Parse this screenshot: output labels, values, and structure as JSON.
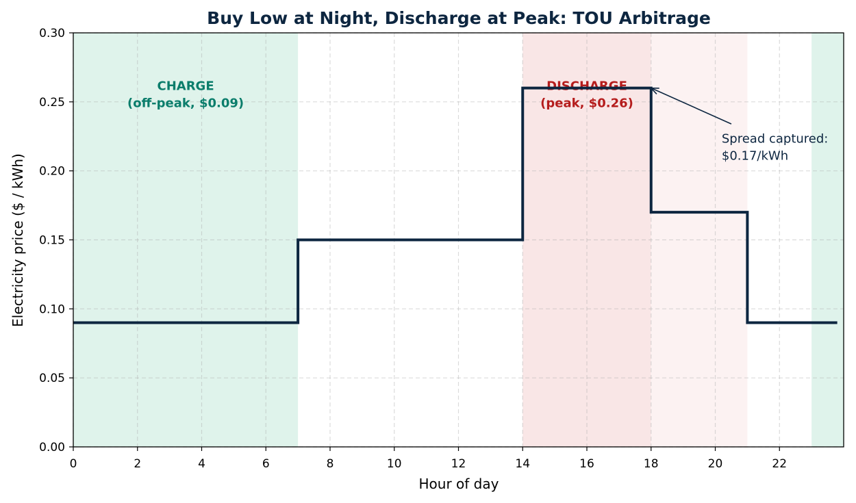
{
  "chart_data": {
    "type": "line",
    "step": "post",
    "title": "Buy Low at Night, Discharge at Peak: TOU Arbitrage",
    "xlabel": "Hour of day",
    "ylabel": "Electricity price ($ / kWh)",
    "xlim": [
      0,
      24
    ],
    "ylim": [
      0,
      0.3
    ],
    "xticks": [
      0,
      2,
      4,
      6,
      8,
      10,
      12,
      14,
      16,
      18,
      20,
      22
    ],
    "xtick_labels": [
      "0",
      "2",
      "4",
      "6",
      "8",
      "10",
      "12",
      "14",
      "16",
      "18",
      "20",
      "22"
    ],
    "yticks": [
      0,
      0.05,
      0.1,
      0.15,
      0.2,
      0.25,
      0.3
    ],
    "ytick_labels": [
      "0.00",
      "0.05",
      "0.10",
      "0.15",
      "0.20",
      "0.25",
      "0.30"
    ],
    "grid": true,
    "line_color": "#0d2640",
    "series": [
      {
        "x": [
          0,
          7,
          14,
          18,
          21,
          23.8
        ],
        "y": [
          0.09,
          0.15,
          0.26,
          0.17,
          0.09,
          0.09
        ]
      }
    ],
    "shaded_regions": [
      {
        "x0": 0,
        "x1": 7,
        "color": "#dff3eb",
        "kind": "charge"
      },
      {
        "x0": 23,
        "x1": 24,
        "color": "#dff3eb",
        "kind": "charge"
      },
      {
        "x0": 14,
        "x1": 18,
        "color": "#f9e6e6",
        "kind": "discharge"
      },
      {
        "x0": 18,
        "x1": 21,
        "color": "#fcf2f2",
        "kind": "discharge-light"
      }
    ],
    "zone_labels": [
      {
        "lines": [
          "CHARGE",
          "(off-peak, $0.09)"
        ],
        "x": 3.5,
        "y": 0.258,
        "color": "#0a7d6b"
      },
      {
        "lines": [
          "DISCHARGE",
          "(peak, $0.26)"
        ],
        "x": 16,
        "y": 0.258,
        "color": "#b51c1c"
      }
    ],
    "annotation": {
      "lines": [
        "Spread captured:",
        "$0.17/kWh"
      ],
      "text_x": 20.2,
      "text_y": 0.224,
      "arrow_from": [
        20.5,
        0.234
      ],
      "arrow_to": [
        18,
        0.26
      ]
    }
  }
}
